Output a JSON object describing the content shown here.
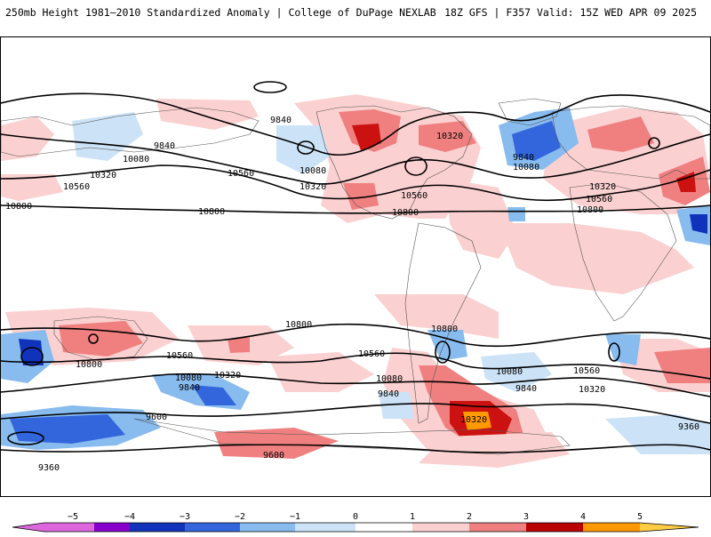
{
  "header": {
    "title_left": "250mb Height 1981–2010 Standardized Anomaly | College of DuPage NEXLAB",
    "title_right": "18Z GFS | F357 Valid: 15Z WED APR 09 2025"
  },
  "map": {
    "field": "250mb height standardized anomaly",
    "contour_labels": [
      "9840",
      "9840",
      "10080",
      "10320",
      "10560",
      "10800",
      "10080",
      "10320",
      "10560",
      "10320",
      "10560",
      "10800",
      "9840",
      "10080",
      "10320",
      "10560",
      "10800",
      "10800",
      "10560",
      "10800",
      "10320",
      "10080",
      "9840",
      "9600",
      "9360",
      "10560",
      "10080",
      "9840",
      "10800",
      "10080",
      "9840",
      "10560",
      "10320",
      "9600",
      "10320",
      "9360",
      "10800"
    ]
  },
  "colorbar": {
    "ticks": [
      "−5",
      "−4",
      "−3",
      "−2",
      "−1",
      "0",
      "1",
      "2",
      "3",
      "4",
      "5"
    ],
    "colors": [
      "#dd66dd",
      "#8800cc",
      "#1133bb",
      "#3366dd",
      "#88bbee",
      "#cce3f7",
      "#ffffff",
      "#fbd0d0",
      "#f08080",
      "#e03030",
      "#bb0000",
      "#ff9900",
      "#ffcc44"
    ]
  }
}
